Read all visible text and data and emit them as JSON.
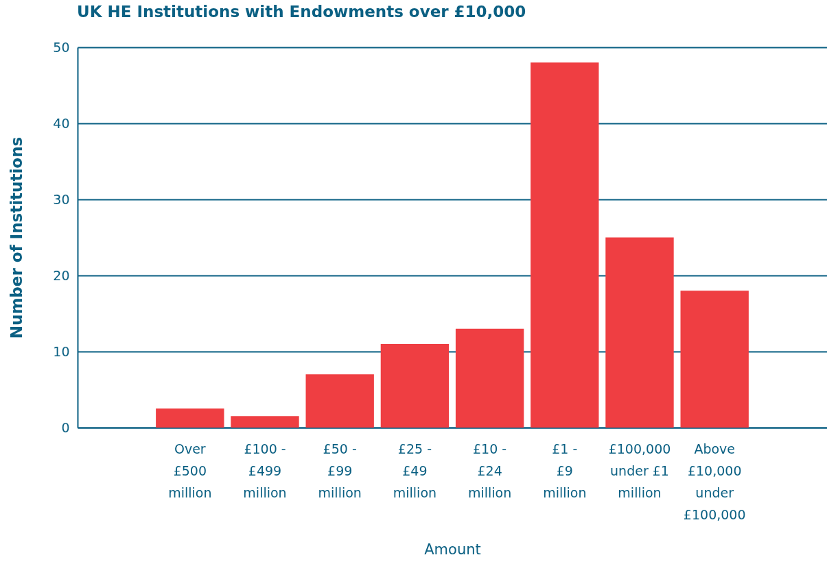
{
  "chart_data": {
    "type": "bar",
    "title": "UK HE Institutions with Endowments over £10,000",
    "xlabel": "Amount",
    "ylabel": "Number of Institutions",
    "categories": [
      null,
      "Over\n£500\nmillion",
      "£100 -\n£499\nmillion",
      "£50 -\n£99\nmillion",
      "£25 -\n£49\nmillion",
      "£10 -\n£24\nmillion",
      "£1 -\n£9\nmillion",
      "£100,000\nunder £1\nmillion",
      "Above\n£10,000\nunder\n£100,000",
      null
    ],
    "values": [
      null,
      2.5,
      1.5,
      7,
      11,
      13,
      48,
      25,
      18,
      null
    ],
    "color": "#ef3e42",
    "ylim": [
      0,
      50
    ],
    "yticks": [
      0,
      10,
      20,
      30,
      40,
      50
    ],
    "grid": "y"
  }
}
